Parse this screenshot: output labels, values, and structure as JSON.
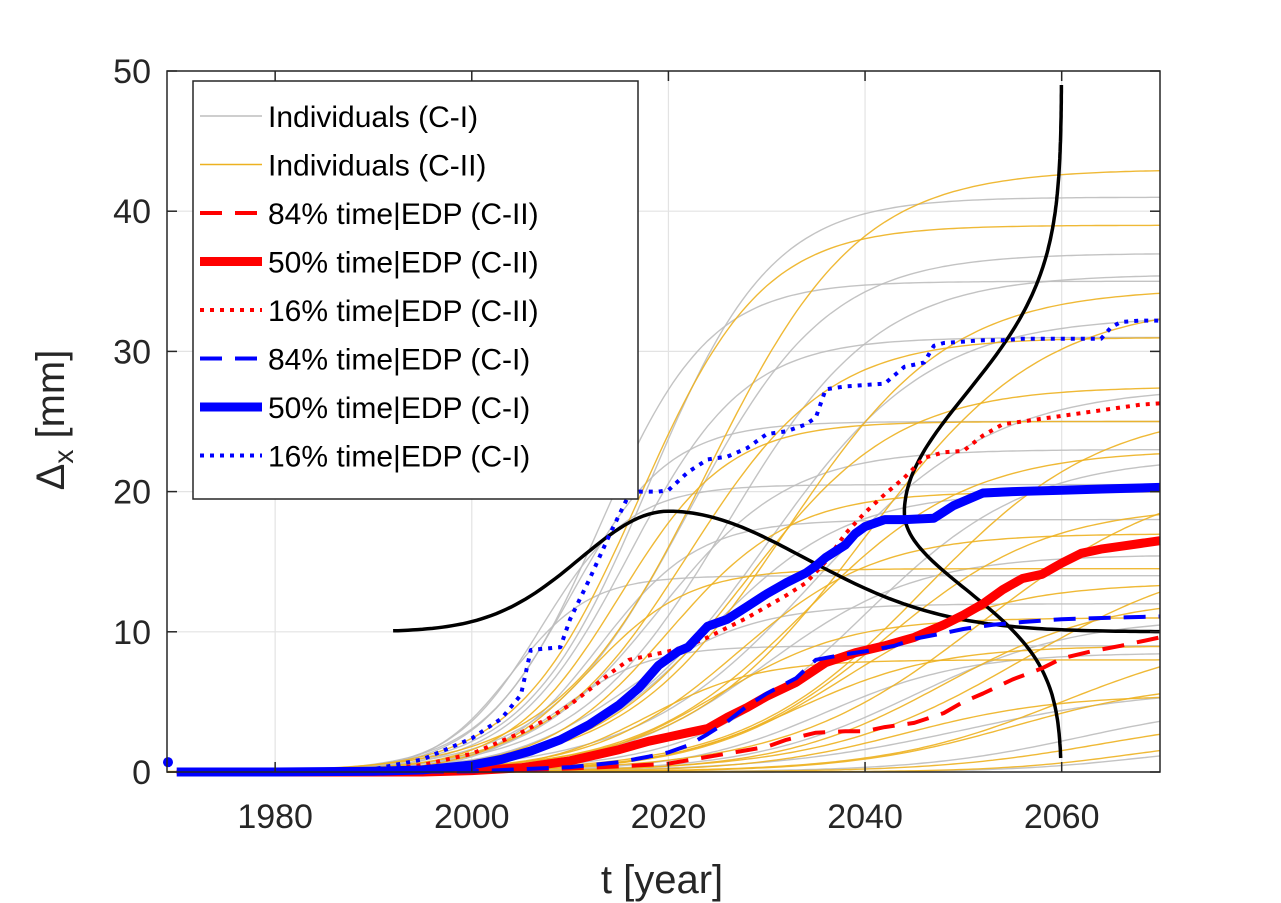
{
  "chart_data": {
    "type": "line",
    "xlabel": "t [year]",
    "ylabel_main": "Δ",
    "ylabel_sub": "x",
    "ylabel_unit": " [mm]",
    "xlim": [
      1969,
      2070
    ],
    "ylim": [
      0,
      50
    ],
    "grid": true,
    "legend_placement": "top-left",
    "x_ticks": [
      1980,
      2000,
      2020,
      2040,
      2060
    ],
    "x_tick_labels": [
      "1980",
      "2000",
      "2020",
      "2040",
      "2060"
    ],
    "y_ticks": [
      0,
      10,
      20,
      30,
      40,
      50
    ],
    "y_tick_labels": [
      "0",
      "10",
      "20",
      "30",
      "40",
      "50"
    ],
    "colors": {
      "individuals_ci": "#bdbdbd",
      "individuals_cii": "#edb120",
      "red": "#ff0000",
      "blue": "#0000ff",
      "black": "#000000"
    },
    "individual_groups": [
      {
        "name": "Individuals (C-I)",
        "color": "#bdbdbd",
        "curves": [
          {
            "plateau": 41.0,
            "midpoint": 2018,
            "rate": 0.16
          },
          {
            "plateau": 37.0,
            "midpoint": 2022,
            "rate": 0.14
          },
          {
            "plateau": 35.5,
            "midpoint": 2026,
            "rate": 0.13
          },
          {
            "plateau": 35.0,
            "midpoint": 2013,
            "rate": 0.18
          },
          {
            "plateau": 32.5,
            "midpoint": 2030,
            "rate": 0.12
          },
          {
            "plateau": 31.0,
            "midpoint": 2016,
            "rate": 0.17
          },
          {
            "plateau": 27.5,
            "midpoint": 2035,
            "rate": 0.11
          },
          {
            "plateau": 25.0,
            "midpoint": 2010,
            "rate": 0.2
          },
          {
            "plateau": 23.0,
            "midpoint": 2019,
            "rate": 0.15
          },
          {
            "plateau": 22.5,
            "midpoint": 2040,
            "rate": 0.12
          },
          {
            "plateau": 20.5,
            "midpoint": 2007,
            "rate": 0.22
          },
          {
            "plateau": 20.0,
            "midpoint": 2024,
            "rate": 0.14
          },
          {
            "plateau": 18.0,
            "midpoint": 2013,
            "rate": 0.2
          },
          {
            "plateau": 15.5,
            "midpoint": 2030,
            "rate": 0.13
          },
          {
            "plateau": 14.0,
            "midpoint": 2004,
            "rate": 0.25
          },
          {
            "plateau": 12.0,
            "midpoint": 2016,
            "rate": 0.16
          },
          {
            "plateau": 11.0,
            "midpoint": 2045,
            "rate": 0.12
          },
          {
            "plateau": 9.0,
            "midpoint": 2009,
            "rate": 0.22
          },
          {
            "plateau": 8.5,
            "midpoint": 2036,
            "rate": 0.14
          },
          {
            "plateau": 6.0,
            "midpoint": 2050,
            "rate": 0.1
          },
          {
            "plateau": 5.0,
            "midpoint": 2062,
            "rate": 0.12
          },
          {
            "plateau": 2.0,
            "midpoint": 2068,
            "rate": 0.15
          }
        ]
      },
      {
        "name": "Individuals (C-II)",
        "color": "#edb120",
        "curves": [
          {
            "plateau": 43.0,
            "midpoint": 2024,
            "rate": 0.13
          },
          {
            "plateau": 39.0,
            "midpoint": 2017,
            "rate": 0.16
          },
          {
            "plateau": 34.5,
            "midpoint": 2032,
            "rate": 0.12
          },
          {
            "plateau": 33.5,
            "midpoint": 2040,
            "rate": 0.11
          },
          {
            "plateau": 31.0,
            "midpoint": 2022,
            "rate": 0.14
          },
          {
            "plateau": 27.5,
            "midpoint": 2028,
            "rate": 0.13
          },
          {
            "plateau": 26.0,
            "midpoint": 2046,
            "rate": 0.11
          },
          {
            "plateau": 25.0,
            "midpoint": 2015,
            "rate": 0.18
          },
          {
            "plateau": 23.0,
            "midpoint": 2034,
            "rate": 0.12
          },
          {
            "plateau": 21.5,
            "midpoint": 2052,
            "rate": 0.1
          },
          {
            "plateau": 20.0,
            "midpoint": 2020,
            "rate": 0.16
          },
          {
            "plateau": 19.0,
            "midpoint": 2042,
            "rate": 0.12
          },
          {
            "plateau": 17.0,
            "midpoint": 2027,
            "rate": 0.14
          },
          {
            "plateau": 16.0,
            "midpoint": 2056,
            "rate": 0.1
          },
          {
            "plateau": 14.5,
            "midpoint": 2012,
            "rate": 0.2
          },
          {
            "plateau": 13.5,
            "midpoint": 2038,
            "rate": 0.13
          },
          {
            "plateau": 12.5,
            "midpoint": 2048,
            "rate": 0.12
          },
          {
            "plateau": 11.0,
            "midpoint": 2025,
            "rate": 0.15
          },
          {
            "plateau": 10.0,
            "midpoint": 2060,
            "rate": 0.11
          },
          {
            "plateau": 9.0,
            "midpoint": 2033,
            "rate": 0.14
          },
          {
            "plateau": 8.0,
            "midpoint": 2018,
            "rate": 0.18
          },
          {
            "plateau": 6.5,
            "midpoint": 2055,
            "rate": 0.12
          },
          {
            "plateau": 5.5,
            "midpoint": 2044,
            "rate": 0.13
          },
          {
            "plateau": 4.0,
            "midpoint": 2064,
            "rate": 0.12
          },
          {
            "plateau": 2.5,
            "midpoint": 2067,
            "rate": 0.15
          }
        ]
      }
    ],
    "series": [
      {
        "name": "84% time|EDP (C-II)",
        "color": "#ff0000",
        "style": "dashed",
        "width": 4,
        "x": [
          1970,
          1980,
          1990,
          2000,
          2005,
          2010,
          2015,
          2020,
          2025,
          2030,
          2032,
          2035,
          2038,
          2040,
          2042,
          2045,
          2048,
          2050,
          2052,
          2055,
          2058,
          2060,
          2063,
          2066,
          2070
        ],
        "y": [
          0,
          0,
          0,
          0.05,
          0.15,
          0.25,
          0.4,
          0.6,
          1.2,
          1.8,
          2.3,
          2.8,
          2.9,
          2.9,
          3.2,
          3.5,
          4.2,
          5.0,
          5.6,
          6.6,
          7.4,
          8.1,
          8.6,
          9.0,
          9.6
        ]
      },
      {
        "name": "50% time|EDP (C-II)",
        "color": "#ff0000",
        "style": "solid",
        "width": 9,
        "x": [
          1970,
          1980,
          1990,
          1995,
          2000,
          2005,
          2010,
          2015,
          2018,
          2020,
          2022,
          2024,
          2026,
          2028,
          2030,
          2033,
          2036,
          2039,
          2042,
          2045,
          2048,
          2050,
          2052,
          2054,
          2056,
          2058,
          2060,
          2062,
          2064,
          2066,
          2068,
          2070
        ],
        "y": [
          0,
          0,
          0,
          0,
          0.1,
          0.3,
          0.8,
          1.6,
          2.2,
          2.5,
          2.8,
          3.1,
          3.9,
          4.6,
          5.4,
          6.4,
          7.8,
          8.5,
          9.0,
          9.6,
          10.5,
          11.2,
          12.0,
          13.0,
          13.8,
          14.1,
          14.9,
          15.6,
          15.9,
          16.1,
          16.3,
          16.5
        ]
      },
      {
        "name": "16% time|EDP (C-II)",
        "color": "#ff0000",
        "style": "dotted",
        "width": 4,
        "x": [
          1970,
          1980,
          1990,
          1995,
          2000,
          2005,
          2008,
          2010,
          2012,
          2014,
          2016,
          2018,
          2020,
          2022,
          2024,
          2026,
          2028,
          2030,
          2032,
          2034,
          2036,
          2038,
          2040,
          2042,
          2044,
          2046,
          2048,
          2050,
          2052,
          2054,
          2056,
          2058,
          2060,
          2062,
          2064,
          2066,
          2068,
          2070
        ],
        "y": [
          0,
          0,
          0.1,
          0.5,
          1.3,
          2.8,
          3.9,
          4.8,
          5.9,
          7.0,
          8.0,
          8.3,
          8.6,
          9.0,
          9.6,
          10.3,
          11.0,
          11.8,
          12.6,
          13.5,
          15.0,
          17.0,
          18.5,
          19.8,
          21.0,
          22.4,
          22.8,
          22.9,
          24.0,
          24.8,
          25.0,
          25.2,
          25.4,
          25.6,
          25.8,
          26.0,
          26.2,
          26.3
        ]
      },
      {
        "name": "84% time|EDP (C-I)",
        "color": "#0000ff",
        "style": "dashed",
        "width": 4,
        "x": [
          1970,
          1980,
          1990,
          2000,
          2005,
          2010,
          2015,
          2018,
          2020,
          2022,
          2024,
          2026,
          2028,
          2030,
          2033,
          2035,
          2038,
          2040,
          2043,
          2045,
          2048,
          2050,
          2053,
          2056,
          2060,
          2065,
          2070
        ],
        "y": [
          0,
          0,
          0,
          0.05,
          0.2,
          0.35,
          0.7,
          1.1,
          1.4,
          1.9,
          2.7,
          3.6,
          4.7,
          5.6,
          6.7,
          8.0,
          8.4,
          8.6,
          9.0,
          9.5,
          9.9,
          10.2,
          10.5,
          10.7,
          10.9,
          11.0,
          11.1
        ]
      },
      {
        "name": "50% time|EDP (C-I)",
        "color": "#0000ff",
        "style": "solid",
        "width": 9,
        "x": [
          1970,
          1980,
          1990,
          1995,
          2000,
          2003,
          2006,
          2009,
          2012,
          2015,
          2017,
          2019,
          2021,
          2022,
          2024,
          2026,
          2028,
          2030,
          2032,
          2034,
          2035,
          2036,
          2038,
          2039,
          2040,
          2042,
          2044,
          2047,
          2049,
          2052,
          2055,
          2060,
          2065,
          2070
        ],
        "y": [
          0,
          0,
          0.05,
          0.15,
          0.5,
          0.9,
          1.5,
          2.3,
          3.4,
          4.8,
          6.0,
          7.6,
          8.6,
          8.9,
          10.4,
          10.9,
          11.8,
          12.7,
          13.5,
          14.2,
          14.7,
          15.3,
          16.2,
          17.0,
          17.5,
          18.0,
          18.0,
          18.1,
          19.0,
          19.9,
          20.0,
          20.1,
          20.2,
          20.3
        ]
      },
      {
        "name": "16% time|EDP (C-I)",
        "color": "#0000ff",
        "style": "dotted",
        "width": 4,
        "x": [
          1970,
          1980,
          1990,
          1995,
          2000,
          2003,
          2005,
          2006,
          2009,
          2010,
          2012,
          2014,
          2016,
          2017,
          2019,
          2020,
          2022,
          2024,
          2026,
          2028,
          2030,
          2032,
          2034,
          2035,
          2036,
          2038,
          2040,
          2042,
          2044,
          2046,
          2047,
          2048,
          2050,
          2052,
          2054,
          2056,
          2058,
          2060,
          2062,
          2064,
          2065,
          2066,
          2068,
          2070
        ],
        "y": [
          0,
          0,
          0.2,
          0.9,
          2.4,
          3.8,
          5.5,
          8.7,
          8.9,
          10.9,
          13.8,
          16.9,
          19.8,
          20.0,
          20.0,
          20.1,
          21.4,
          22.3,
          22.5,
          23.1,
          24.1,
          24.3,
          24.8,
          25.3,
          27.3,
          27.5,
          27.6,
          27.7,
          28.9,
          29.2,
          30.4,
          30.6,
          30.7,
          30.8,
          30.8,
          30.9,
          30.9,
          30.9,
          30.9,
          30.9,
          31.7,
          32.1,
          32.2,
          32.2
        ]
      }
    ],
    "distribution_curves": [
      {
        "name": "pdf-over-time",
        "color": "#000000",
        "orientation": "horizontal",
        "baseline_y": 10,
        "peak_x": 2020,
        "peak_y": 18.6,
        "x_start": 1992,
        "x_end": 2070,
        "sigma_left": 9,
        "sigma_right": 14
      },
      {
        "name": "pdf-over-displacement",
        "color": "#000000",
        "orientation": "vertical",
        "baseline_x": 2060,
        "peak_x": 2044,
        "peak_y": 18.5,
        "y_start": 1,
        "y_end": 49,
        "sigma_below": 5.5,
        "sigma_above": 8.5
      }
    ],
    "legend": [
      {
        "label": "Individuals (C-I)",
        "color": "#bdbdbd",
        "style": "solid",
        "width": 1.5
      },
      {
        "label": "Individuals (C-II)",
        "color": "#edb120",
        "style": "solid",
        "width": 1.5
      },
      {
        "label": "84% time|EDP (C-II)",
        "color": "#ff0000",
        "style": "dashed",
        "width": 4
      },
      {
        "label": "50% time|EDP (C-II)",
        "color": "#ff0000",
        "style": "solid",
        "width": 9
      },
      {
        "label": "16% time|EDP (C-II)",
        "color": "#ff0000",
        "style": "dotted",
        "width": 4
      },
      {
        "label": "84% time|EDP (C-I)",
        "color": "#0000ff",
        "style": "dashed",
        "width": 4
      },
      {
        "label": "50% time|EDP (C-I)",
        "color": "#0000ff",
        "style": "solid",
        "width": 9
      },
      {
        "label": "16% time|EDP (C-I)",
        "color": "#0000ff",
        "style": "dotted",
        "width": 4
      }
    ]
  }
}
